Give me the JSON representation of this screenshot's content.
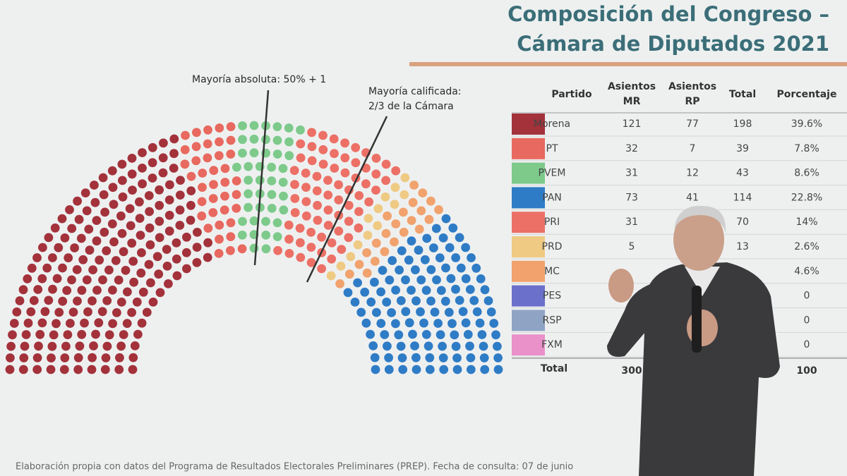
{
  "title": [
    "Composición del Congreso –",
    "Cámara de Diputados 2021"
  ],
  "annotations": {
    "absolute_majority": "Mayoría absoluta: 50% + 1",
    "qualified_majority": [
      "Mayoría calificada:",
      "2/3 de la Cámara"
    ]
  },
  "hemicycle": {
    "parties": [
      "Morena",
      "PT",
      "PVEM",
      "PRI",
      "PRD",
      "MC",
      "PAN"
    ],
    "seats": [
      198,
      39,
      43,
      70,
      13,
      23,
      114
    ],
    "colors": [
      "#a3323b",
      "#e8695f",
      "#7dca8b",
      "#ec7066",
      "#efca83",
      "#f1a26d",
      "#2f7cc6"
    ]
  },
  "table": {
    "header": [
      "Partido",
      [
        "Asientos",
        "MR"
      ],
      [
        "Asientos",
        "RP"
      ],
      "Total",
      "Porcentaje"
    ],
    "rows": [
      {
        "color": "#a3323b",
        "cells": [
          "Morena",
          "121",
          "77",
          "198",
          "39.6%"
        ]
      },
      {
        "color": "#e8695f",
        "cells": [
          "PT",
          "32",
          "7",
          "39",
          "7.8%"
        ]
      },
      {
        "color": "#7dca8b",
        "cells": [
          "PVEM",
          "31",
          "12",
          "43",
          "8.6%"
        ]
      },
      {
        "color": "#2f7cc6",
        "cells": [
          "PAN",
          "73",
          "41",
          "114",
          "22.8%"
        ]
      },
      {
        "color": "#ec7066",
        "cells": [
          "PRI",
          "31",
          null,
          "70",
          "14%"
        ]
      },
      {
        "color": "#efca83",
        "cells": [
          "PRD",
          "5",
          null,
          "13",
          "2.6%"
        ]
      },
      {
        "color": "#f1a26d",
        "cells": [
          "MC",
          null,
          null,
          null,
          "4.6%"
        ]
      },
      {
        "color": "#6b70cb",
        "cells": [
          "PES",
          null,
          null,
          null,
          "0"
        ]
      },
      {
        "color": "#8fa4c4",
        "cells": [
          "RSP",
          null,
          null,
          null,
          "0"
        ]
      },
      {
        "color": "#e991c8",
        "cells": [
          "FXM",
          null,
          null,
          null,
          "0"
        ]
      }
    ],
    "total": [
      "Total",
      "300",
      null,
      null,
      "100"
    ]
  },
  "source": "Elaboración propia con datos del Programa de Resultados Electorales Preliminares (PREP). Fecha de consulta: 07 de junio"
}
